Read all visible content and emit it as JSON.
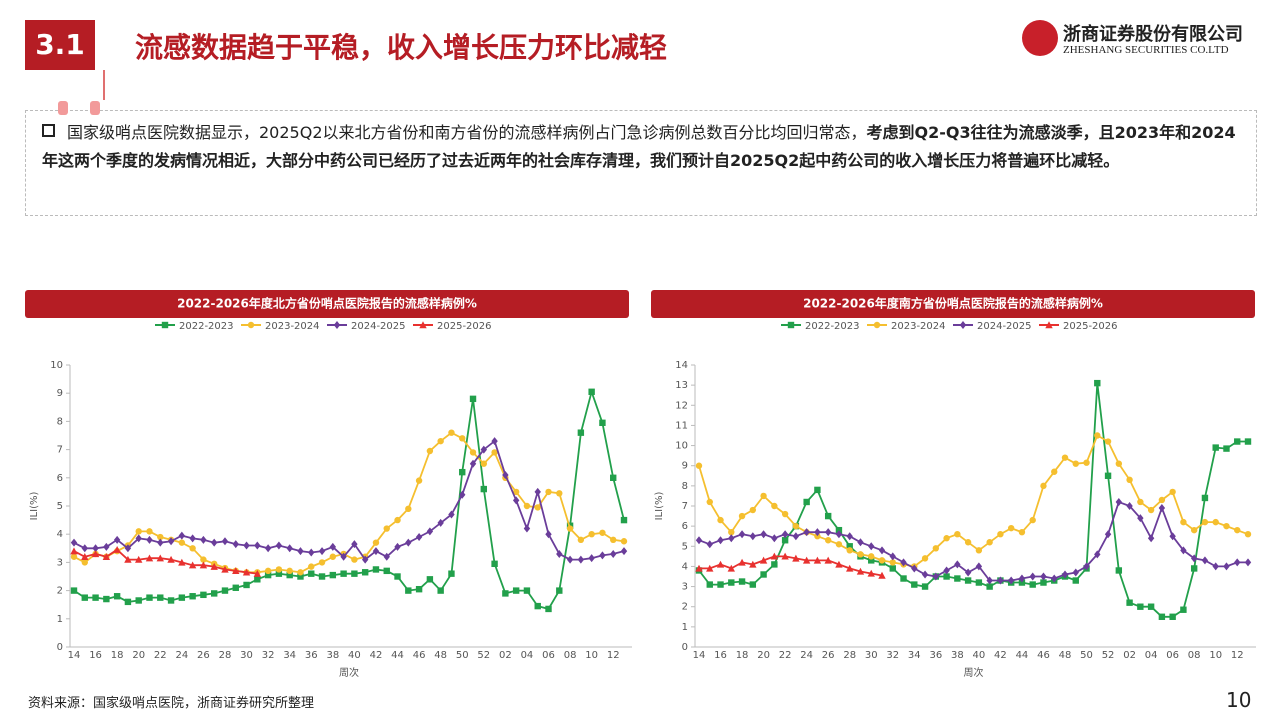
{
  "header": {
    "number": "3.1",
    "title": "流感数据趋于平稳，收入增长压力环比减轻",
    "logo_cn": "浙商证券股份有限公司",
    "logo_en": "ZHESHANG SECURITIES CO.LTD"
  },
  "body": {
    "normal": "国家级哨点医院数据显示，2025Q2以来北方省份和南方省份的流感样病例占门急诊病例总数百分比均回归常态，",
    "bold": "考虑到Q2-Q3往往为流感淡季，且2023年和2024年这两个季度的发病情况相近，大部分中药公司已经历了过去近两年的社会库存清理，我们预计自2025Q2起中药公司的收入增长压力将普遍环比减轻。"
  },
  "source": "资料来源：国家级哨点医院，浙商证券研究所整理",
  "page_number": "10",
  "chart_data": [
    {
      "type": "line",
      "title": "2022-2026年度北方省份哨点医院报告的流感样病例%",
      "x_label": "周次",
      "y_label": "ILI(%)",
      "categories": [
        "14",
        null,
        "16",
        null,
        "18",
        null,
        "20",
        null,
        "22",
        null,
        "24",
        null,
        "26",
        null,
        "28",
        null,
        "30",
        null,
        "32",
        null,
        "34",
        null,
        "36",
        null,
        "38",
        null,
        "40",
        null,
        "42",
        null,
        "44",
        null,
        "46",
        null,
        "48",
        null,
        "50",
        null,
        "52",
        null,
        "02",
        null,
        "04",
        null,
        "06",
        null,
        "08",
        null,
        "10",
        null,
        "12",
        null
      ],
      "ylim": [
        0,
        10
      ],
      "yticks": [
        0,
        1,
        2,
        3,
        4,
        5,
        6,
        7,
        8,
        9,
        10
      ],
      "series": [
        {
          "name": "2022-2023",
          "color": "#22a04b",
          "marker": "square",
          "values": [
            2.0,
            1.75,
            1.75,
            1.7,
            1.8,
            1.6,
            1.65,
            1.75,
            1.75,
            1.65,
            1.75,
            1.8,
            1.85,
            1.9,
            2.0,
            2.1,
            2.2,
            2.4,
            2.55,
            2.6,
            2.55,
            2.5,
            2.6,
            2.5,
            2.55,
            2.6,
            2.6,
            2.65,
            2.75,
            2.7,
            2.5,
            2.0,
            2.05,
            2.4,
            2.0,
            2.6,
            6.2,
            8.8,
            5.6,
            2.95,
            1.9,
            2.0,
            2.0,
            1.45,
            1.35,
            2.0,
            4.3,
            7.6,
            9.05,
            7.95,
            6.0,
            4.5
          ]
        },
        {
          "name": "2023-2024",
          "color": "#f5bf2f",
          "marker": "circle",
          "values": [
            3.2,
            3.0,
            3.3,
            3.2,
            3.4,
            3.6,
            4.1,
            4.1,
            3.9,
            3.8,
            3.7,
            3.5,
            3.1,
            2.95,
            2.8,
            2.7,
            2.65,
            2.65,
            2.7,
            2.75,
            2.7,
            2.65,
            2.85,
            3.0,
            3.2,
            3.3,
            3.1,
            3.2,
            3.7,
            4.2,
            4.5,
            4.9,
            5.9,
            6.95,
            7.3,
            7.6,
            7.4,
            6.9,
            6.5,
            6.9,
            6.0,
            5.5,
            5.0,
            4.95,
            5.5,
            5.45,
            4.2,
            3.8,
            4.0,
            4.05,
            3.8,
            3.75
          ]
        },
        {
          "name": "2024-2025",
          "color": "#6a3d9a",
          "marker": "diamond",
          "values": [
            3.7,
            3.5,
            3.5,
            3.55,
            3.8,
            3.5,
            3.85,
            3.8,
            3.7,
            3.75,
            3.95,
            3.85,
            3.8,
            3.7,
            3.75,
            3.65,
            3.6,
            3.6,
            3.5,
            3.6,
            3.5,
            3.4,
            3.35,
            3.4,
            3.55,
            3.2,
            3.65,
            3.1,
            3.4,
            3.2,
            3.55,
            3.7,
            3.9,
            4.1,
            4.4,
            4.7,
            5.4,
            6.5,
            7.0,
            7.3,
            6.1,
            5.2,
            4.2,
            5.5,
            4.0,
            3.3,
            3.1,
            3.1,
            3.15,
            3.25,
            3.3,
            3.4
          ]
        },
        {
          "name": "2025-2026",
          "color": "#e8312f",
          "marker": "triangle",
          "values": [
            3.4,
            3.2,
            3.3,
            3.2,
            3.45,
            3.1,
            3.1,
            3.15,
            3.15,
            3.1,
            3.0,
            2.9,
            2.9,
            2.85,
            2.75,
            2.7,
            2.65,
            2.6,
            null,
            null,
            null,
            null,
            null,
            null,
            null,
            null,
            null,
            null,
            null,
            null,
            null,
            null,
            null,
            null,
            null,
            null,
            null,
            null,
            null,
            null,
            null,
            null,
            null,
            null,
            null,
            null,
            null,
            null,
            null,
            null,
            null,
            null
          ]
        }
      ]
    },
    {
      "type": "line",
      "title": "2022-2026年度南方省份哨点医院报告的流感样病例%",
      "x_label": "周次",
      "y_label": "ILI(%)",
      "categories": [
        "14",
        null,
        "16",
        null,
        "18",
        null,
        "20",
        null,
        "22",
        null,
        "24",
        null,
        "26",
        null,
        "28",
        null,
        "30",
        null,
        "32",
        null,
        "34",
        null,
        "36",
        null,
        "38",
        null,
        "40",
        null,
        "42",
        null,
        "44",
        null,
        "46",
        null,
        "48",
        null,
        "50",
        null,
        "52",
        null,
        "02",
        null,
        "04",
        null,
        "06",
        null,
        "08",
        null,
        "10",
        null,
        "12",
        null
      ],
      "ylim": [
        0,
        14
      ],
      "yticks": [
        0,
        1,
        2,
        3,
        4,
        5,
        6,
        7,
        8,
        9,
        10,
        11,
        12,
        13,
        14
      ],
      "series": [
        {
          "name": "2022-2023",
          "color": "#22a04b",
          "marker": "square",
          "values": [
            3.8,
            3.1,
            3.1,
            3.2,
            3.25,
            3.1,
            3.6,
            4.1,
            5.3,
            6.0,
            7.2,
            7.8,
            6.5,
            5.8,
            5.0,
            4.5,
            4.3,
            4.2,
            3.9,
            3.4,
            3.1,
            3.0,
            3.5,
            3.5,
            3.4,
            3.3,
            3.2,
            3.0,
            3.3,
            3.2,
            3.2,
            3.1,
            3.2,
            3.3,
            3.5,
            3.3,
            3.9,
            13.1,
            8.5,
            3.8,
            2.2,
            2.0,
            2.0,
            1.5,
            1.5,
            1.85,
            3.9,
            7.4,
            9.9,
            9.85,
            10.2,
            10.2
          ]
        },
        {
          "name": "2023-2024",
          "color": "#f5bf2f",
          "marker": "circle",
          "values": [
            9.0,
            7.2,
            6.3,
            5.7,
            6.5,
            6.8,
            7.5,
            7.0,
            6.6,
            6.0,
            5.7,
            5.5,
            5.3,
            5.1,
            4.8,
            4.6,
            4.5,
            4.3,
            4.2,
            4.1,
            4.0,
            4.4,
            4.9,
            5.4,
            5.6,
            5.2,
            4.8,
            5.2,
            5.6,
            5.9,
            5.7,
            6.3,
            8.0,
            8.7,
            9.4,
            9.1,
            9.15,
            10.5,
            10.2,
            9.1,
            8.3,
            7.2,
            6.8,
            7.3,
            7.7,
            6.2,
            5.8,
            6.2,
            6.2,
            6.0,
            5.8,
            5.6
          ]
        },
        {
          "name": "2024-2025",
          "color": "#6a3d9a",
          "marker": "diamond",
          "values": [
            5.3,
            5.1,
            5.3,
            5.4,
            5.6,
            5.5,
            5.6,
            5.4,
            5.6,
            5.5,
            5.7,
            5.7,
            5.7,
            5.6,
            5.5,
            5.2,
            5.0,
            4.8,
            4.5,
            4.2,
            3.9,
            3.6,
            3.5,
            3.8,
            4.1,
            3.7,
            4.0,
            3.3,
            3.3,
            3.3,
            3.4,
            3.5,
            3.5,
            3.4,
            3.6,
            3.7,
            4.0,
            4.6,
            5.6,
            7.2,
            7.0,
            6.4,
            5.4,
            6.9,
            5.5,
            4.8,
            4.4,
            4.3,
            4.0,
            4.0,
            4.2,
            4.2
          ]
        },
        {
          "name": "2025-2026",
          "color": "#e8312f",
          "marker": "triangle",
          "values": [
            3.9,
            3.9,
            4.1,
            3.9,
            4.2,
            4.1,
            4.3,
            4.5,
            4.5,
            4.4,
            4.3,
            4.3,
            4.3,
            4.1,
            3.9,
            3.75,
            3.65,
            3.55,
            null,
            null,
            null,
            null,
            null,
            null,
            null,
            null,
            null,
            null,
            null,
            null,
            null,
            null,
            null,
            null,
            null,
            null,
            null,
            null,
            null,
            null,
            null,
            null,
            null,
            null,
            null,
            null,
            null,
            null,
            null,
            null,
            null,
            null
          ]
        }
      ]
    }
  ]
}
